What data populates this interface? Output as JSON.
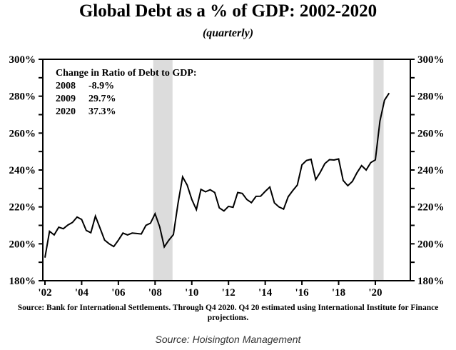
{
  "chart_data": {
    "type": "line",
    "title": "Global Debt as a % of GDP: 2002-2020",
    "subtitle": "(quarterly)",
    "xlabel": "",
    "ylabel": "",
    "ylim": [
      180,
      300
    ],
    "yticks": [
      180,
      200,
      220,
      240,
      260,
      280,
      300
    ],
    "ytick_labels": [
      "180%",
      "200%",
      "220%",
      "240%",
      "260%",
      "280%",
      "300%"
    ],
    "xlim": [
      2002.0,
      2021.5
    ],
    "xticks": [
      2002,
      2004,
      2006,
      2008,
      2010,
      2012,
      2014,
      2016,
      2018,
      2020
    ],
    "xtick_labels": [
      "'02",
      "'04",
      "'06",
      "'08",
      "'10",
      "'12",
      "'14",
      "'16",
      "'18",
      "'20"
    ],
    "grid": false,
    "dual_y_axis": true,
    "shaded_regions": [
      {
        "x_start": 2007.9,
        "x_end": 2008.95,
        "color": "#dcdcdc"
      },
      {
        "x_start": 2019.9,
        "x_end": 2020.45,
        "color": "#dcdcdc"
      }
    ],
    "series": [
      {
        "name": "Global Debt to GDP",
        "color": "#000000",
        "x": [
          2002.0,
          2002.25,
          2002.5,
          2002.75,
          2003.0,
          2003.25,
          2003.5,
          2003.75,
          2004.0,
          2004.25,
          2004.5,
          2004.75,
          2005.0,
          2005.25,
          2005.5,
          2005.75,
          2006.0,
          2006.25,
          2006.5,
          2006.75,
          2007.0,
          2007.25,
          2007.5,
          2007.75,
          2008.0,
          2008.25,
          2008.5,
          2008.75,
          2009.0,
          2009.25,
          2009.5,
          2009.75,
          2010.0,
          2010.25,
          2010.5,
          2010.75,
          2011.0,
          2011.25,
          2011.5,
          2011.75,
          2012.0,
          2012.25,
          2012.5,
          2012.75,
          2013.0,
          2013.25,
          2013.5,
          2013.75,
          2014.0,
          2014.25,
          2014.5,
          2014.75,
          2015.0,
          2015.25,
          2015.5,
          2015.75,
          2016.0,
          2016.25,
          2016.5,
          2016.75,
          2017.0,
          2017.25,
          2017.5,
          2017.75,
          2018.0,
          2018.25,
          2018.5,
          2018.75,
          2019.0,
          2019.25,
          2019.5,
          2019.75,
          2020.0,
          2020.25,
          2020.5,
          2020.75
        ],
        "values": [
          192.5,
          206.8,
          204.8,
          209.0,
          208.2,
          210.2,
          211.6,
          214.5,
          213.2,
          207.2,
          206.0,
          215.0,
          208.5,
          202.0,
          200.0,
          198.5,
          202.0,
          205.8,
          204.8,
          205.8,
          205.6,
          205.3,
          210.0,
          211.2,
          216.3,
          209.2,
          198.3,
          202.0,
          205.0,
          222.0,
          236.3,
          231.8,
          224.0,
          218.5,
          229.5,
          228.2,
          229.3,
          227.8,
          219.5,
          217.8,
          220.3,
          219.8,
          227.8,
          227.3,
          224.0,
          222.3,
          225.7,
          225.8,
          228.4,
          230.8,
          222.2,
          220.0,
          218.8,
          225.5,
          228.8,
          231.8,
          242.8,
          245.2,
          245.8,
          234.8,
          238.8,
          243.5,
          245.6,
          245.4,
          246.0,
          234.3,
          231.5,
          233.8,
          238.5,
          242.4,
          240.0,
          244.0,
          245.5,
          266.5,
          277.8,
          281.7
        ]
      }
    ],
    "annotation": {
      "heading": "Change in Ratio of Debt to GDP:",
      "rows": [
        {
          "year": "2008",
          "change": "-8.9%"
        },
        {
          "year": "2009",
          "change": "29.7%"
        },
        {
          "year": "2020",
          "change": "37.3%"
        }
      ]
    },
    "source_note": "Source:  Bank for International Settlements. Through Q4 2020. Q4 20 estimated using International Institute for Finance projections.",
    "credit": "Source: Hoisington Management"
  }
}
